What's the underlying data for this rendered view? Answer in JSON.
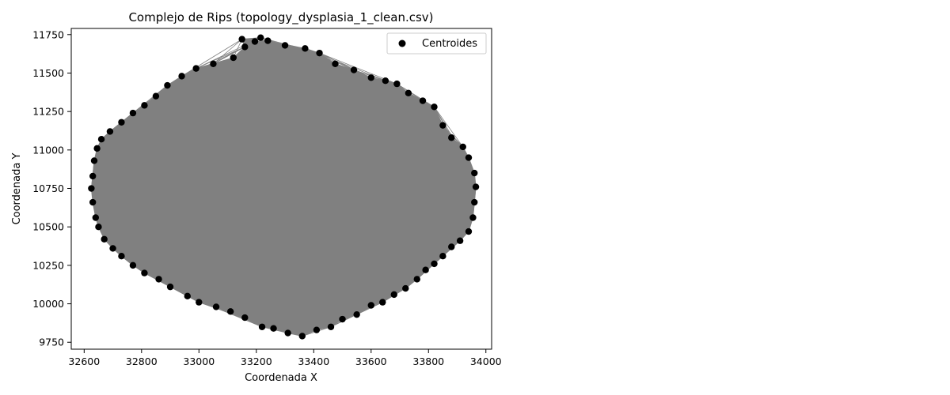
{
  "chart_data": {
    "type": "scatter",
    "title": "Complejo de Rips (topology_dysplasia_1_clean.csv)",
    "xlabel": "Coordenada X",
    "ylabel": "Coordenada Y",
    "xlim": [
      32555,
      34020
    ],
    "ylim": [
      9705,
      11790
    ],
    "xticks": [
      32600,
      32800,
      33000,
      33200,
      33400,
      33600,
      33800,
      34000
    ],
    "yticks": [
      9750,
      10000,
      10250,
      10500,
      10750,
      11000,
      11250,
      11500,
      11750
    ],
    "legend_position": "upper right",
    "grid": false,
    "series": [
      {
        "name": "Centroides",
        "marker_color": "#000000",
        "edge_color": "#808080",
        "fill_color": "#808080",
        "points": [
          [
            33195,
            11705
          ],
          [
            33240,
            11710
          ],
          [
            33300,
            11680
          ],
          [
            33370,
            11660
          ],
          [
            33420,
            11630
          ],
          [
            33475,
            11560
          ],
          [
            33540,
            11520
          ],
          [
            33600,
            11470
          ],
          [
            33650,
            11450
          ],
          [
            33690,
            11430
          ],
          [
            33730,
            11370
          ],
          [
            33780,
            11320
          ],
          [
            33820,
            11280
          ],
          [
            33850,
            11160
          ],
          [
            33880,
            11080
          ],
          [
            33920,
            11020
          ],
          [
            33940,
            10950
          ],
          [
            33960,
            10850
          ],
          [
            33965,
            10760
          ],
          [
            33960,
            10660
          ],
          [
            33955,
            10560
          ],
          [
            33940,
            10470
          ],
          [
            33910,
            10410
          ],
          [
            33880,
            10370
          ],
          [
            33850,
            10310
          ],
          [
            33820,
            10260
          ],
          [
            33790,
            10220
          ],
          [
            33760,
            10160
          ],
          [
            33720,
            10100
          ],
          [
            33680,
            10060
          ],
          [
            33640,
            10010
          ],
          [
            33600,
            9990
          ],
          [
            33550,
            9930
          ],
          [
            33500,
            9900
          ],
          [
            33460,
            9850
          ],
          [
            33410,
            9830
          ],
          [
            33360,
            9790
          ],
          [
            33310,
            9810
          ],
          [
            33260,
            9840
          ],
          [
            33220,
            9850
          ],
          [
            33160,
            9910
          ],
          [
            33110,
            9950
          ],
          [
            33060,
            9980
          ],
          [
            33000,
            10010
          ],
          [
            32960,
            10050
          ],
          [
            32900,
            10110
          ],
          [
            32860,
            10160
          ],
          [
            32810,
            10200
          ],
          [
            32770,
            10250
          ],
          [
            32730,
            10310
          ],
          [
            32700,
            10360
          ],
          [
            32670,
            10420
          ],
          [
            32650,
            10500
          ],
          [
            32640,
            10560
          ],
          [
            32630,
            10660
          ],
          [
            32625,
            10750
          ],
          [
            32630,
            10830
          ],
          [
            32635,
            10930
          ],
          [
            32645,
            11010
          ],
          [
            32660,
            11070
          ],
          [
            32690,
            11120
          ],
          [
            32730,
            11180
          ],
          [
            32770,
            11240
          ],
          [
            32810,
            11290
          ],
          [
            32850,
            11350
          ],
          [
            32890,
            11420
          ],
          [
            32940,
            11480
          ],
          [
            32990,
            11530
          ],
          [
            33050,
            11560
          ],
          [
            33120,
            11600
          ],
          [
            33160,
            11670
          ],
          [
            33150,
            11720
          ],
          [
            33215,
            11730
          ]
        ]
      }
    ]
  }
}
